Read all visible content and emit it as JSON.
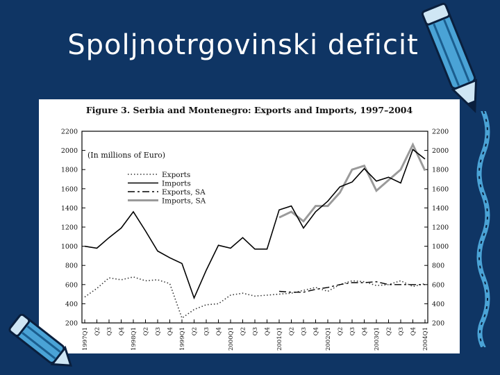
{
  "slide": {
    "title": "Spoljnotrgovinski deficit"
  },
  "colors": {
    "background": "#0f3564",
    "panel": "#ffffff",
    "exports": "#333333",
    "imports": "#000000",
    "exports_sa": "#000000",
    "imports_sa": "#9a9a9a",
    "pencil": "#4aa3d6"
  },
  "decorations": [
    "pencil-icon",
    "pencil-icon"
  ],
  "chart_data": {
    "type": "line",
    "title": "Figure 3. Serbia and Montenegro: Exports and Imports, 1997–2004",
    "annotation": "(In millions of Euro)",
    "xlabel": "",
    "ylabel": "",
    "ylim": [
      200,
      2200
    ],
    "yticks": [
      200,
      400,
      600,
      800,
      1000,
      1200,
      1400,
      1600,
      1800,
      2000,
      2200
    ],
    "grid": false,
    "legend_position": "upper-left",
    "categories": [
      "1997Q1",
      "Q2",
      "Q3",
      "Q4",
      "1998Q1",
      "Q2",
      "Q3",
      "Q4",
      "1999Q1",
      "Q2",
      "Q3",
      "Q4",
      "2000Q1",
      "Q2",
      "Q3",
      "Q4",
      "2001Q1",
      "Q2",
      "Q3",
      "Q4",
      "2002Q1",
      "Q2",
      "Q3",
      "Q4",
      "2003Q1",
      "Q2",
      "Q3",
      "Q4",
      "2004Q1"
    ],
    "series": [
      {
        "name": "Exports",
        "style": "dotted",
        "values": [
          470,
          560,
          670,
          650,
          680,
          640,
          650,
          610,
          250,
          340,
          390,
          400,
          490,
          510,
          480,
          490,
          500,
          510,
          540,
          570,
          530,
          600,
          640,
          630,
          590,
          600,
          640,
          580,
          610
        ]
      },
      {
        "name": "Imports",
        "style": "solid",
        "values": [
          1000,
          980,
          1090,
          1190,
          1360,
          1160,
          950,
          880,
          820,
          460,
          750,
          1010,
          980,
          1090,
          970,
          970,
          1380,
          1420,
          1190,
          1360,
          1470,
          1620,
          1670,
          1810,
          1680,
          1720,
          1660,
          2010,
          1910
        ]
      },
      {
        "name": "Exports, SA",
        "style": "dashed",
        "values": [
          null,
          null,
          null,
          null,
          null,
          null,
          null,
          null,
          null,
          null,
          null,
          null,
          null,
          null,
          null,
          null,
          530,
          520,
          520,
          550,
          570,
          600,
          620,
          620,
          630,
          600,
          600,
          600,
          600
        ]
      },
      {
        "name": "Imports, SA",
        "style": "gray",
        "values": [
          null,
          null,
          null,
          null,
          null,
          null,
          null,
          null,
          null,
          null,
          null,
          null,
          null,
          null,
          null,
          null,
          1300,
          1360,
          1260,
          1420,
          1420,
          1560,
          1800,
          1840,
          1580,
          1690,
          1800,
          2060,
          1790
        ]
      }
    ]
  }
}
